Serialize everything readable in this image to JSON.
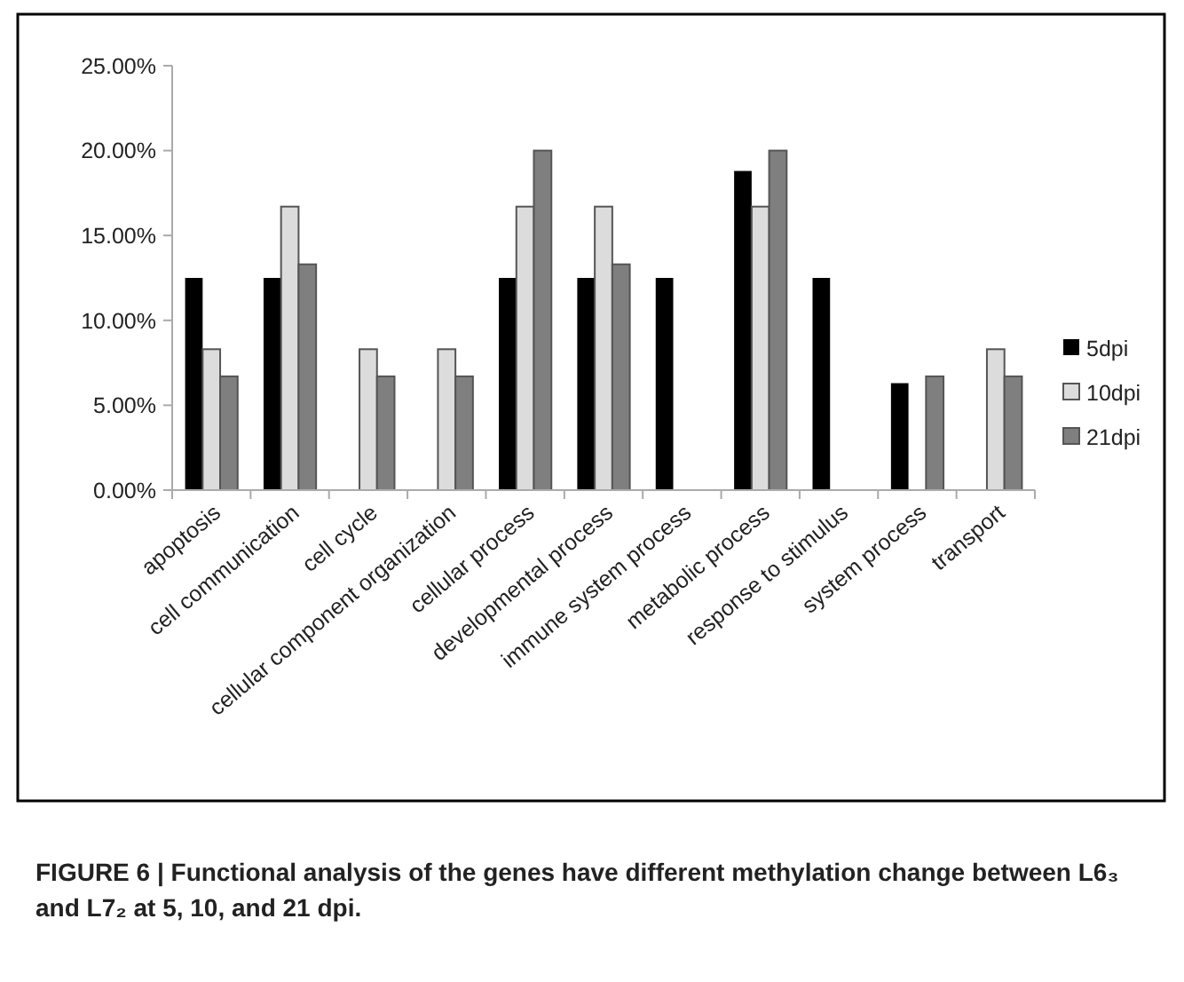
{
  "chart_data": {
    "type": "bar",
    "title": "FIGURE 6 | Functional analysis of the genes have different methylation change between L6₃ and L7₂ at 5, 10, and 21 dpi.",
    "categories": [
      "apoptosis",
      "cell communication",
      "cell cycle",
      "cellular component organization",
      "cellular process",
      "developmental process",
      "immune system process",
      "metabolic process",
      "response to stimulus",
      "system process",
      "transport"
    ],
    "series": [
      {
        "name": "5dpi",
        "color": "#000000",
        "values": [
          12.5,
          12.5,
          null,
          null,
          12.5,
          12.5,
          12.5,
          18.8,
          12.5,
          6.3,
          null
        ]
      },
      {
        "name": "10dpi",
        "color": "#dcdcdc",
        "values": [
          8.3,
          16.7,
          8.3,
          8.3,
          16.7,
          16.7,
          null,
          16.7,
          null,
          null,
          8.3
        ]
      },
      {
        "name": "21dpi",
        "color": "#7f7f7f",
        "values": [
          6.7,
          13.3,
          6.7,
          6.7,
          20,
          13.3,
          null,
          20,
          null,
          6.7,
          6.7
        ]
      }
    ],
    "ylim": [
      0,
      25
    ],
    "yticks": [
      {
        "value": 0,
        "label": "0.00%"
      },
      {
        "value": 5,
        "label": "5.00%"
      },
      {
        "value": 10,
        "label": "10.00%"
      },
      {
        "value": 15,
        "label": "15.00%"
      },
      {
        "value": 20,
        "label": "20.00%"
      },
      {
        "value": 25,
        "label": "25.00%"
      }
    ],
    "legend": "right",
    "grid": false
  }
}
